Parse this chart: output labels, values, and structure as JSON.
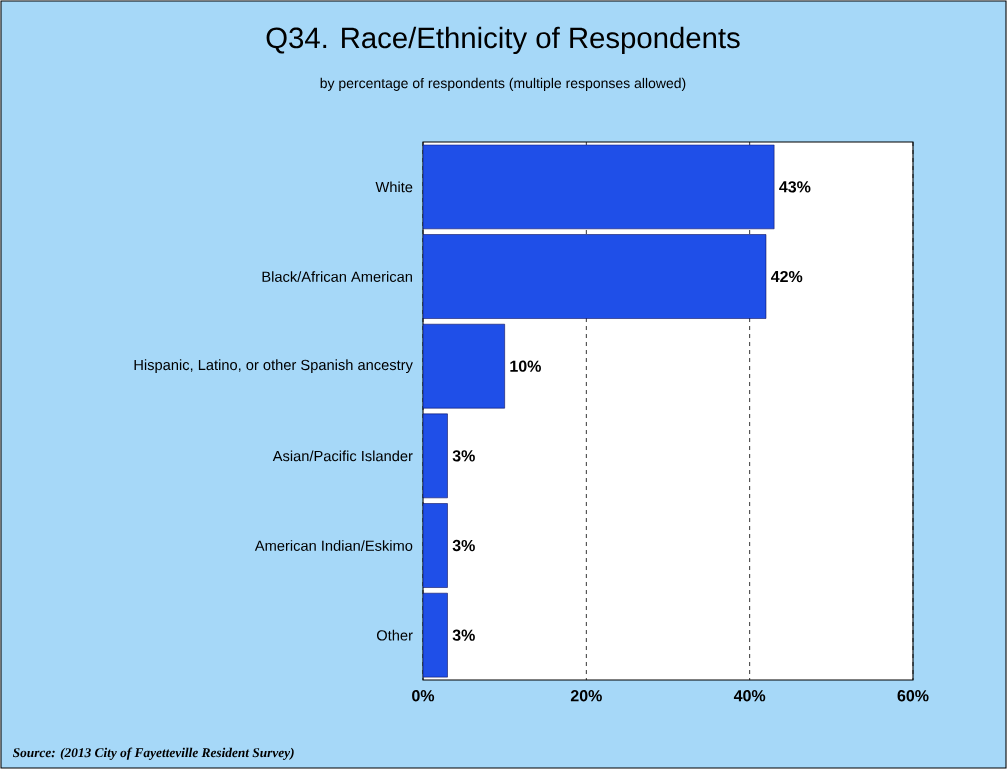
{
  "chart_data": {
    "type": "bar",
    "orientation": "horizontal",
    "title": "Q34. Race/Ethnicity of Respondents",
    "subtitle": "by percentage of respondents (multiple responses allowed)",
    "categories": [
      "White",
      "Black/African American",
      "Hispanic, Latino, or other Spanish ancestry",
      "Asian/Pacific Islander",
      "American Indian/Eskimo",
      "Other"
    ],
    "values": [
      43,
      42,
      10,
      3,
      3,
      3
    ],
    "value_labels": [
      "43%",
      "42%",
      "10%",
      "3%",
      "3%",
      "3%"
    ],
    "color": "#1f4fe8",
    "xlim": [
      0,
      60
    ],
    "xticks": [
      {
        "value": 0,
        "label": "0%"
      },
      {
        "value": 20,
        "label": "20%"
      },
      {
        "value": 40,
        "label": "40%"
      },
      {
        "value": 60,
        "label": "60%"
      }
    ],
    "grid": "x",
    "annotations": [
      "Source: (2013 City of Fayetteville Resident Survey)"
    ]
  }
}
